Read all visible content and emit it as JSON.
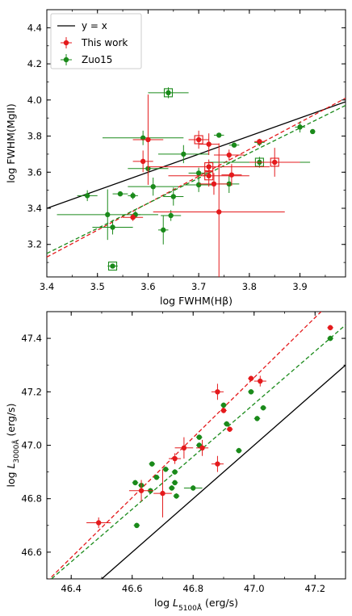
{
  "chart_data": [
    {
      "type": "scatter",
      "xlabel": "log FWHM(Hβ)",
      "ylabel": "log FWHM(MgII)",
      "xlim": [
        3.4,
        3.99
      ],
      "ylim": [
        3.02,
        4.5
      ],
      "xticks": [
        "3.4",
        "3.5",
        "3.6",
        "3.7",
        "3.8",
        "3.9"
      ],
      "yticks": [
        "3.2",
        "3.4",
        "3.6",
        "3.8",
        "4.0",
        "4.2",
        "4.4"
      ],
      "legend_position": "top-left",
      "legend": [
        {
          "label": "y = x",
          "kind": "line",
          "color": "#000000"
        },
        {
          "label": "This work",
          "kind": "errorpoint",
          "color": "#e41a1c"
        },
        {
          "label": "Zuo15",
          "kind": "errorpoint",
          "color": "#1a8a1a"
        }
      ],
      "lines": [
        {
          "kind": "identity",
          "x": [
            3.4,
            3.99
          ],
          "y": [
            3.4,
            3.99
          ],
          "color": "#000000",
          "dash": false
        },
        {
          "kind": "fit-this-work",
          "x": [
            3.4,
            3.99
          ],
          "y": [
            3.13,
            4.01
          ],
          "color": "#e41a1c",
          "dash": true
        },
        {
          "kind": "fit-zuo15",
          "x": [
            3.4,
            3.99
          ],
          "y": [
            3.15,
            3.97
          ],
          "color": "#1a8a1a",
          "dash": true
        }
      ],
      "series": [
        {
          "name": "This work",
          "color": "#e41a1c",
          "points": [
            {
              "x": 3.59,
              "y": 3.66,
              "xerr": 0.02,
              "yerr": 0.06
            },
            {
              "x": 3.6,
              "y": 3.78,
              "xerr": 0.03,
              "yerr": 0.25
            },
            {
              "x": 3.57,
              "y": 3.35,
              "xerr": 0.02,
              "yerr": 0.02
            },
            {
              "x": 3.7,
              "y": 3.78,
              "xerr": 0.02,
              "yerr": 0.05,
              "boxed": true
            },
            {
              "x": 3.72,
              "y": 3.755,
              "xerr": 0.02,
              "yerr": 0.06
            },
            {
              "x": 3.72,
              "y": 3.63,
              "xerr": 0.12,
              "yerr": 0.04,
              "boxed": true
            },
            {
              "x": 3.72,
              "y": 3.58,
              "xerr": 0.08,
              "yerr": 0.06,
              "boxed": true
            },
            {
              "x": 3.73,
              "y": 3.535,
              "xerr": 0.03,
              "yerr": 0.06
            },
            {
              "x": 3.74,
              "y": 3.38,
              "xerr": 0.13,
              "yerr": 0.38
            },
            {
              "x": 3.76,
              "y": 3.695,
              "xerr": 0.03,
              "yerr": 0.03
            },
            {
              "x": 3.765,
              "y": 3.585,
              "xerr": 0.02,
              "yerr": 0.06
            },
            {
              "x": 3.85,
              "y": 3.655,
              "xerr": 0.05,
              "yerr": 0.08,
              "boxed": true
            },
            {
              "x": 3.82,
              "y": 3.77,
              "xerr": 0.01,
              "yerr": 0.01
            }
          ]
        },
        {
          "name": "Zuo15",
          "color": "#1a8a1a",
          "points": [
            {
              "x": 3.48,
              "y": 3.47,
              "xerr": 0.02,
              "yerr": 0.03
            },
            {
              "x": 3.52,
              "y": 3.365,
              "xerr": 0.1,
              "yerr": 0.14
            },
            {
              "x": 3.53,
              "y": 3.295,
              "xerr": 0.04,
              "yerr": 0.04
            },
            {
              "x": 3.545,
              "y": 3.48,
              "xerr": 0.015,
              "yerr": 0.01
            },
            {
              "x": 3.57,
              "y": 3.47,
              "xerr": 0.01,
              "yerr": 0.02
            },
            {
              "x": 3.575,
              "y": 3.365,
              "xerr": 0.01,
              "yerr": 0.02
            },
            {
              "x": 3.53,
              "y": 3.08,
              "xerr": 0.01,
              "yerr": 0.01,
              "boxed": true
            },
            {
              "x": 3.59,
              "y": 3.79,
              "xerr": 0.08,
              "yerr": 0.04
            },
            {
              "x": 3.6,
              "y": 3.62,
              "xerr": 0.04,
              "yerr": 0.04
            },
            {
              "x": 3.61,
              "y": 3.52,
              "xerr": 0.05,
              "yerr": 0.05
            },
            {
              "x": 3.63,
              "y": 3.28,
              "xerr": 0.01,
              "yerr": 0.08
            },
            {
              "x": 3.64,
              "y": 4.04,
              "xerr": 0.04,
              "yerr": 0.03,
              "boxed": true
            },
            {
              "x": 3.645,
              "y": 3.36,
              "xerr": 0.02,
              "yerr": 0.03
            },
            {
              "x": 3.65,
              "y": 3.465,
              "xerr": 0.02,
              "yerr": 0.05
            },
            {
              "x": 3.67,
              "y": 3.7,
              "xerr": 0.05,
              "yerr": 0.05
            },
            {
              "x": 3.7,
              "y": 3.53,
              "xerr": 0.03,
              "yerr": 0.04
            },
            {
              "x": 3.7,
              "y": 3.595,
              "xerr": 0.02,
              "yerr": 0.03
            },
            {
              "x": 3.74,
              "y": 3.805,
              "xerr": 0.01,
              "yerr": 0.01
            },
            {
              "x": 3.76,
              "y": 3.535,
              "xerr": 0.02,
              "yerr": 0.05
            },
            {
              "x": 3.77,
              "y": 3.75,
              "xerr": 0.01,
              "yerr": 0.01
            },
            {
              "x": 3.82,
              "y": 3.765,
              "xerr": 0.01,
              "yerr": 0.02
            },
            {
              "x": 3.82,
              "y": 3.655,
              "xerr": 0.1,
              "yerr": 0.03,
              "boxed": true
            },
            {
              "x": 3.9,
              "y": 3.85,
              "xerr": 0.01,
              "yerr": 0.03
            },
            {
              "x": 3.925,
              "y": 3.825,
              "xerr": 0.005,
              "yerr": 0.005
            }
          ]
        }
      ]
    },
    {
      "type": "scatter",
      "xlabel": "log L5100Å (erg/s)",
      "ylabel": "log L3000Å (erg/s)",
      "xlim": [
        46.32,
        47.3
      ],
      "ylim": [
        46.5,
        47.5
      ],
      "xticks": [
        "46.4",
        "46.6",
        "46.8",
        "47.0",
        "47.2"
      ],
      "yticks": [
        "46.6",
        "46.8",
        "47.0",
        "47.2",
        "47.4"
      ],
      "lines": [
        {
          "kind": "identity",
          "x": [
            46.5,
            47.3
          ],
          "y": [
            46.5,
            47.3
          ],
          "color": "#000000",
          "dash": false
        },
        {
          "kind": "fit-this-work",
          "x": [
            46.32,
            47.3
          ],
          "y": [
            46.49,
            47.59
          ],
          "color": "#e41a1c",
          "dash": true
        },
        {
          "kind": "fit-zuo15",
          "x": [
            46.32,
            47.3
          ],
          "y": [
            46.485,
            47.45
          ],
          "color": "#1a8a1a",
          "dash": true
        }
      ],
      "series": [
        {
          "name": "This work",
          "color": "#e41a1c",
          "points": [
            {
              "x": 46.49,
              "y": 46.71,
              "xerr": 0.04,
              "yerr": 0.02
            },
            {
              "x": 46.63,
              "y": 46.83,
              "xerr": 0.04,
              "yerr": 0.04
            },
            {
              "x": 46.7,
              "y": 46.82,
              "xerr": 0.03,
              "yerr": 0.09
            },
            {
              "x": 46.74,
              "y": 46.95,
              "xerr": 0.02,
              "yerr": 0.02
            },
            {
              "x": 46.77,
              "y": 46.99,
              "xerr": 0.03,
              "yerr": 0.04
            },
            {
              "x": 46.83,
              "y": 46.99,
              "xerr": 0.02,
              "yerr": 0.03
            },
            {
              "x": 46.88,
              "y": 47.2,
              "xerr": 0.02,
              "yerr": 0.03
            },
            {
              "x": 46.88,
              "y": 46.93,
              "xerr": 0.02,
              "yerr": 0.03
            },
            {
              "x": 46.9,
              "y": 47.13,
              "xerr": 0.01,
              "yerr": 0.01
            },
            {
              "x": 46.92,
              "y": 47.06,
              "xerr": 0.01,
              "yerr": 0.01
            },
            {
              "x": 46.99,
              "y": 47.25,
              "xerr": 0.01,
              "yerr": 0.01
            },
            {
              "x": 47.02,
              "y": 47.24,
              "xerr": 0.02,
              "yerr": 0.02
            },
            {
              "x": 47.25,
              "y": 47.44,
              "xerr": 0.01,
              "yerr": 0.01
            }
          ]
        },
        {
          "name": "Zuo15",
          "color": "#1a8a1a",
          "points": [
            {
              "x": 46.61,
              "y": 46.86,
              "xerr": 0.01,
              "yerr": 0.01
            },
            {
              "x": 46.615,
              "y": 46.7,
              "xerr": 0.01,
              "yerr": 0.01
            },
            {
              "x": 46.63,
              "y": 46.85,
              "xerr": 0.01,
              "yerr": 0.01
            },
            {
              "x": 46.66,
              "y": 46.83,
              "xerr": 0.01,
              "yerr": 0.01
            },
            {
              "x": 46.665,
              "y": 46.93,
              "xerr": 0.01,
              "yerr": 0.01
            },
            {
              "x": 46.68,
              "y": 46.88,
              "xerr": 0.01,
              "yerr": 0.01
            },
            {
              "x": 46.71,
              "y": 46.91,
              "xerr": 0.01,
              "yerr": 0.01
            },
            {
              "x": 46.73,
              "y": 46.84,
              "xerr": 0.01,
              "yerr": 0.01
            },
            {
              "x": 46.74,
              "y": 46.86,
              "xerr": 0.01,
              "yerr": 0.01
            },
            {
              "x": 46.745,
              "y": 46.81,
              "xerr": 0.01,
              "yerr": 0.01
            },
            {
              "x": 46.74,
              "y": 46.9,
              "xerr": 0.01,
              "yerr": 0.01
            },
            {
              "x": 46.8,
              "y": 46.84,
              "xerr": 0.03,
              "yerr": 0.01
            },
            {
              "x": 46.82,
              "y": 47.0,
              "xerr": 0.01,
              "yerr": 0.01
            },
            {
              "x": 46.82,
              "y": 47.03,
              "xerr": 0.01,
              "yerr": 0.01
            },
            {
              "x": 46.9,
              "y": 47.15,
              "xerr": 0.01,
              "yerr": 0.01
            },
            {
              "x": 46.91,
              "y": 47.08,
              "xerr": 0.01,
              "yerr": 0.01
            },
            {
              "x": 46.95,
              "y": 46.98,
              "xerr": 0.01,
              "yerr": 0.01
            },
            {
              "x": 46.99,
              "y": 47.2,
              "xerr": 0.01,
              "yerr": 0.01
            },
            {
              "x": 47.01,
              "y": 47.1,
              "xerr": 0.01,
              "yerr": 0.01
            },
            {
              "x": 47.03,
              "y": 47.14,
              "xerr": 0.01,
              "yerr": 0.01
            },
            {
              "x": 47.25,
              "y": 47.4,
              "xerr": 0.01,
              "yerr": 0.01
            }
          ]
        }
      ]
    }
  ]
}
